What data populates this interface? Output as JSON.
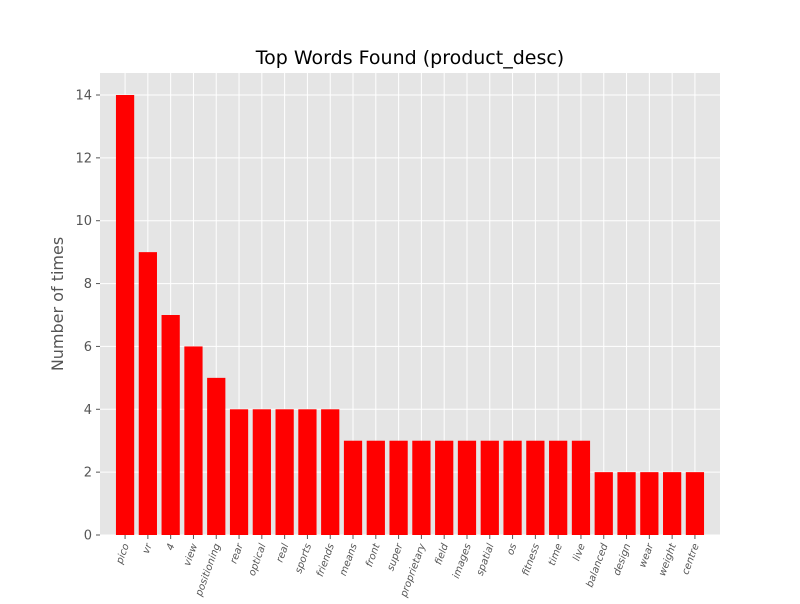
{
  "chart_data": {
    "type": "bar",
    "title": "Top Words Found (product_desc)",
    "xlabel": "",
    "ylabel": "Number of times",
    "categories": [
      "pico",
      "vr",
      "4",
      "view",
      "positioning",
      "rear",
      "optical",
      "real",
      "sports",
      "friends",
      "means",
      "front",
      "super",
      "proprietary",
      "field",
      "images",
      "spatial",
      "os",
      "fitness",
      "time",
      "live",
      "balanced",
      "design",
      "wear",
      "weight",
      "centre"
    ],
    "values": [
      14,
      9,
      7,
      6,
      5,
      4,
      4,
      4,
      4,
      4,
      3,
      3,
      3,
      3,
      3,
      3,
      3,
      3,
      3,
      3,
      3,
      2,
      2,
      2,
      2,
      2
    ],
    "ylim": [
      0,
      14.7
    ],
    "yticks": [
      0,
      2,
      4,
      6,
      8,
      10,
      12,
      14
    ],
    "grid": true,
    "bar_color": "#ff0000",
    "plot_background": "#e5e5e5",
    "grid_color": "#ffffff"
  }
}
